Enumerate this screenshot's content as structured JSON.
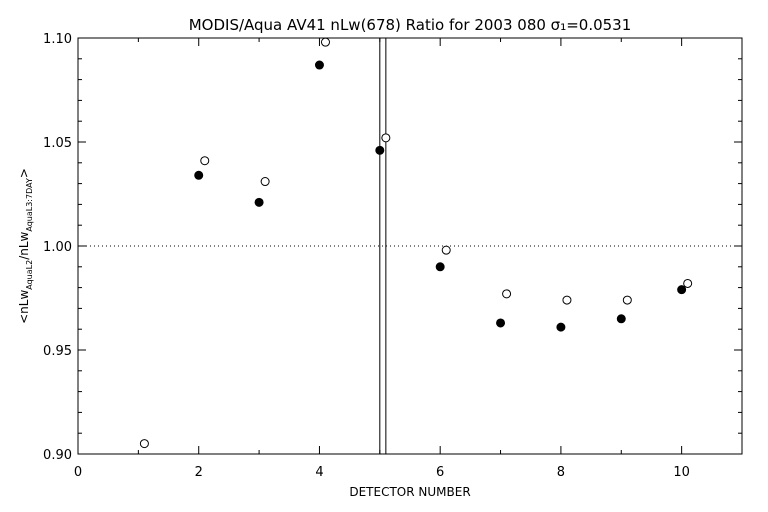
{
  "chart_data": {
    "type": "scatter",
    "title": "MODIS/Aqua AV41 nLw(678) Ratio for 2003 080 σ₁=0.0531",
    "xlabel": "DETECTOR NUMBER",
    "ylabel": "<nLw_AquaL2/nLw_AquaL3:7DAY>",
    "ylabel_parts": {
      "open": "<nLw",
      "sub1": "AquaL2",
      "mid": "/nLw",
      "sub2": "AquaL3:7DAY",
      "close": ">"
    },
    "xlim": [
      0,
      11
    ],
    "ylim": [
      0.9,
      1.1
    ],
    "xticks": [
      0,
      2,
      4,
      6,
      8,
      10
    ],
    "yticks": [
      0.9,
      0.95,
      1.0,
      1.05,
      1.1
    ],
    "xtick_labels": [
      "0",
      "2",
      "4",
      "6",
      "8",
      "10"
    ],
    "ytick_labels": [
      "0.90",
      "0.95",
      "1.00",
      "1.05",
      "1.10"
    ],
    "reference_line": {
      "y": 1.0,
      "style": "dotted"
    },
    "vertical_lines": [
      5.0,
      5.1
    ],
    "series": [
      {
        "marker": "filled-circle",
        "x": [
          2,
          3,
          4,
          5,
          6,
          7,
          8,
          9,
          10
        ],
        "y": [
          1.034,
          1.021,
          1.087,
          1.046,
          0.99,
          0.963,
          0.961,
          0.965,
          0.979
        ]
      },
      {
        "marker": "open-circle",
        "x": [
          1.1,
          2.1,
          3.1,
          4.1,
          5.1,
          6.1,
          7.1,
          8.1,
          9.1,
          10.1
        ],
        "y": [
          0.905,
          1.041,
          1.031,
          1.098,
          1.052,
          0.998,
          0.977,
          0.974,
          0.974,
          0.982
        ]
      }
    ]
  }
}
